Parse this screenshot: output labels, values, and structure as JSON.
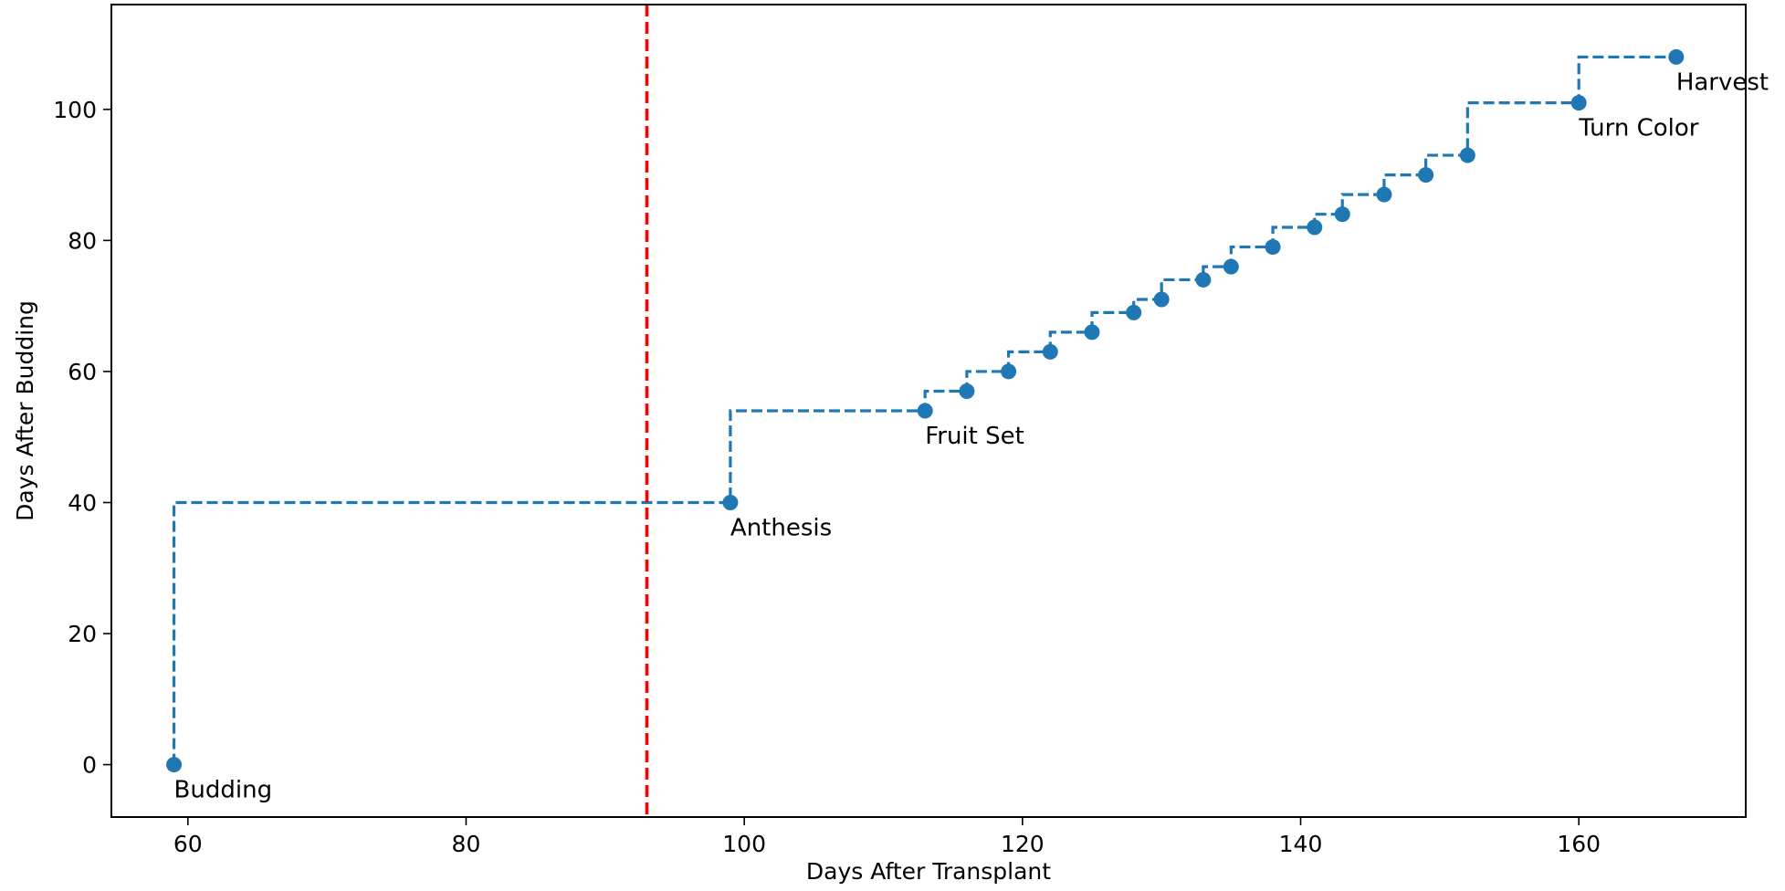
{
  "chart_data": {
    "type": "line",
    "title": "",
    "xlabel": "Days After Transplant",
    "ylabel": "Days After Budding",
    "xlim": [
      54.5,
      172
    ],
    "ylim": [
      -8,
      116
    ],
    "xticks": [
      60,
      80,
      100,
      120,
      140,
      160
    ],
    "yticks": [
      0,
      20,
      40,
      60,
      80,
      100
    ],
    "grid": false,
    "series": [
      {
        "color": "#1f77b4",
        "line_style": "dashed",
        "step": "pre",
        "marker": "circle",
        "points": [
          {
            "x": 59,
            "y": 0
          },
          {
            "x": 99,
            "y": 40
          },
          {
            "x": 113,
            "y": 54
          },
          {
            "x": 116,
            "y": 57
          },
          {
            "x": 119,
            "y": 60
          },
          {
            "x": 122,
            "y": 63
          },
          {
            "x": 125,
            "y": 66
          },
          {
            "x": 128,
            "y": 69
          },
          {
            "x": 130,
            "y": 71
          },
          {
            "x": 133,
            "y": 74
          },
          {
            "x": 135,
            "y": 76
          },
          {
            "x": 138,
            "y": 79
          },
          {
            "x": 141,
            "y": 82
          },
          {
            "x": 143,
            "y": 84
          },
          {
            "x": 146,
            "y": 87
          },
          {
            "x": 149,
            "y": 90
          },
          {
            "x": 152,
            "y": 93
          },
          {
            "x": 160,
            "y": 101
          },
          {
            "x": 167,
            "y": 108
          }
        ]
      }
    ],
    "annotations": [
      {
        "text": "Budding",
        "x": 59,
        "y": 0
      },
      {
        "text": "Anthesis",
        "x": 99,
        "y": 40
      },
      {
        "text": "Fruit Set",
        "x": 113,
        "y": 54
      },
      {
        "text": "Turn Color",
        "x": 160,
        "y": 101
      },
      {
        "text": "Harvest",
        "x": 167,
        "y": 108
      }
    ],
    "vertical_lines": [
      {
        "x": 93,
        "color": "#ff0000",
        "line_style": "dashed"
      }
    ]
  }
}
